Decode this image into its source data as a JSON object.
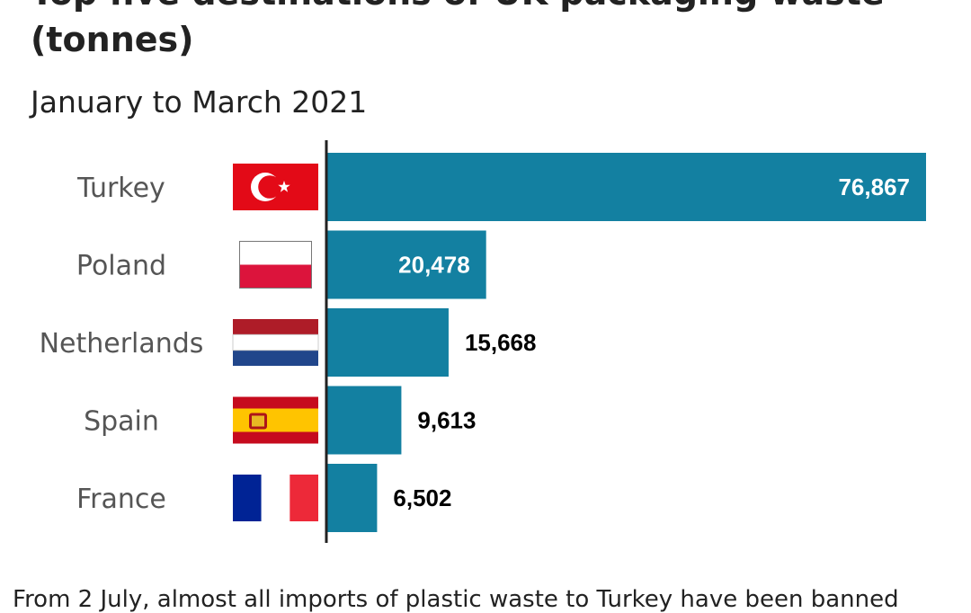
{
  "header": {
    "title": "Top five destinations of UK packaging waste (tonnes)",
    "subtitle": "January to March 2021"
  },
  "footnote": "From 2 July, almost all imports of plastic waste to Turkey have been banned",
  "colors": {
    "bar": "#1380A1",
    "axis": "#222222",
    "label_inside": "#ffffff",
    "label_outside": "#000000"
  },
  "chart_data": {
    "type": "bar",
    "orientation": "horizontal",
    "title": "Top five destinations of UK packaging waste (tonnes)",
    "subtitle": "January to March 2021",
    "categories": [
      "Turkey",
      "Poland",
      "Netherlands",
      "Spain",
      "France"
    ],
    "values": [
      76867,
      20478,
      15668,
      9613,
      6502
    ],
    "value_labels": [
      "76,867",
      "20,478",
      "15,668",
      "9,613",
      "6,502"
    ],
    "flags": [
      "turkey-flag",
      "poland-flag",
      "netherlands-flag",
      "spain-flag",
      "france-flag"
    ],
    "xlim": [
      0,
      76867
    ],
    "grid": false,
    "legend": "none"
  }
}
